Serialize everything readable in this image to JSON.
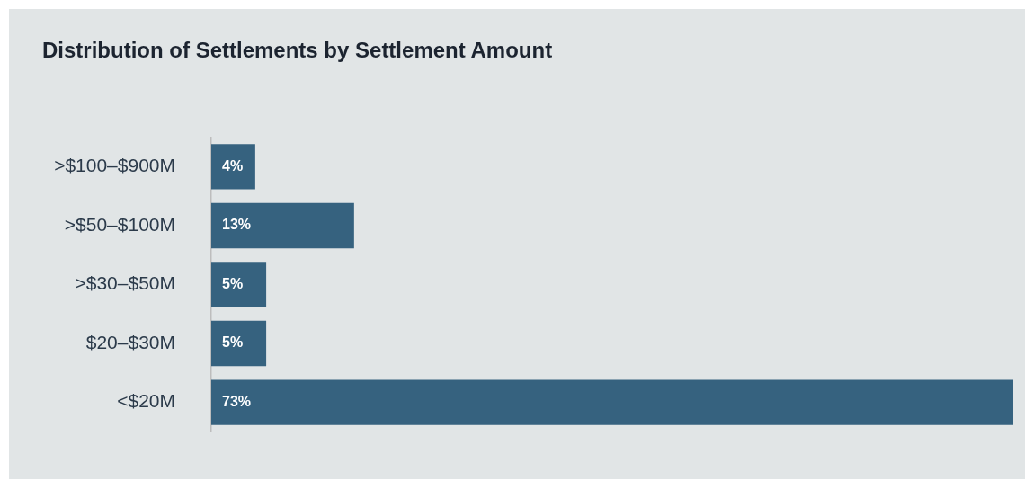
{
  "chart_data": {
    "type": "bar",
    "orientation": "horizontal",
    "title": "Distribution of Settlements by Settlement Amount",
    "categories": [
      ">$100–$900M",
      ">$50–$100M",
      ">$30–$50M",
      "$20–$30M",
      "<$20M"
    ],
    "values": [
      4,
      13,
      5,
      5,
      73
    ],
    "value_labels": [
      "4%",
      "13%",
      "5%",
      "5%",
      "73%"
    ],
    "color": "#36627f",
    "xlim": [
      0,
      73
    ],
    "tick_labels": "y",
    "grid": false,
    "legend": false
  }
}
